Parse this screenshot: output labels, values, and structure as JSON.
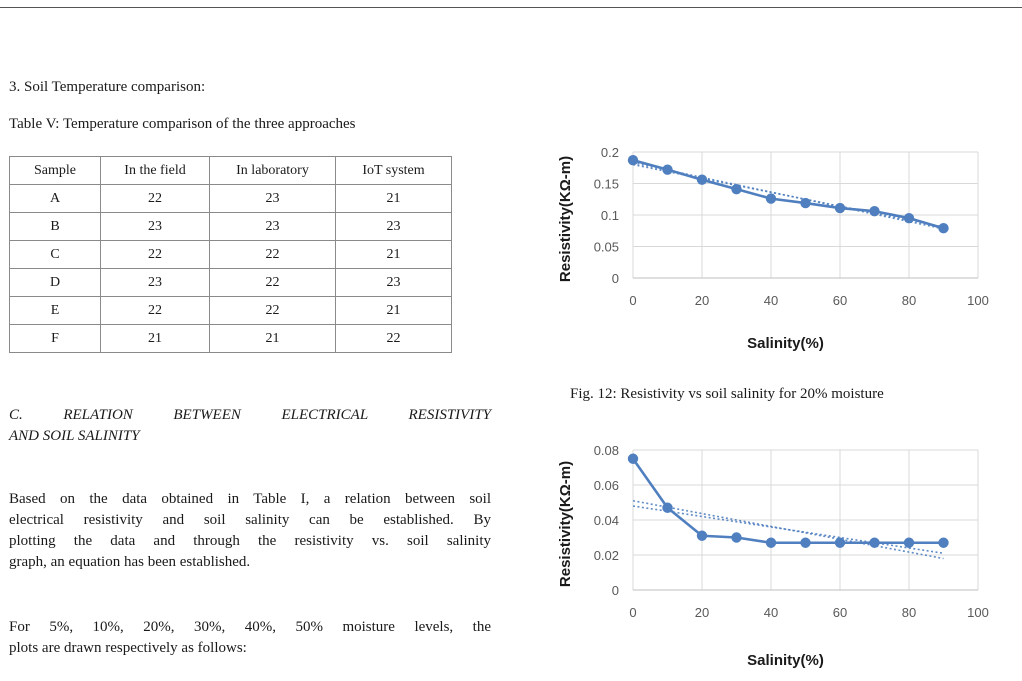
{
  "section3": {
    "heading": "3.  Soil Temperature comparison:",
    "table_caption": "Table V: Temperature comparison of the three approaches",
    "columns": [
      "Sample",
      "In the field",
      "In laboratory",
      "IoT system"
    ],
    "rows": [
      [
        "A",
        "22",
        "23",
        "21"
      ],
      [
        "B",
        "23",
        "23",
        "23"
      ],
      [
        "C",
        "22",
        "22",
        "21"
      ],
      [
        "D",
        "23",
        "22",
        "23"
      ],
      [
        "E",
        "22",
        "22",
        "21"
      ],
      [
        "F",
        "21",
        "21",
        "22"
      ]
    ]
  },
  "sectionC": {
    "title_line1": "C.   RELATION BETWEEN ELECTRICAL RESISTIVITY",
    "title_line2": "AND SOIL SALINITY",
    "para1_lines": [
      "Based on the data obtained in Table I, a relation between soil",
      "electrical resistivity and soil salinity can be established. By",
      "plotting the data and through the resistivity vs. soil salinity",
      "graph, an equation has been established."
    ],
    "para2_lines": [
      "For 5%, 10%, 20%, 30%, 40%, 50% moisture levels, the",
      "plots are drawn respectively as follows:"
    ]
  },
  "figure12": {
    "caption": "Fig.  12: Resistivity vs soil salinity for 20% moisture"
  },
  "chart_data": [
    {
      "type": "line",
      "x": [
        0,
        10,
        20,
        30,
        40,
        50,
        60,
        70,
        80,
        90
      ],
      "series": [
        {
          "values": [
            0.187,
            0.172,
            0.156,
            0.141,
            0.126,
            0.119,
            0.111,
            0.106,
            0.095,
            0.079
          ]
        }
      ],
      "trendlines": [
        {
          "x": [
            0,
            90
          ],
          "y": [
            0.183,
            0.078
          ]
        },
        {
          "x": [
            0,
            90
          ],
          "y": [
            0.18,
            0.081
          ]
        }
      ],
      "xlabel": "Salinity(%)",
      "ylabel": "Resistivity(KΩ-m)",
      "xlim": [
        0,
        100
      ],
      "ylim": [
        0,
        0.2
      ],
      "xticks": [
        "0",
        "20",
        "40",
        "60",
        "80",
        "100"
      ],
      "yticks": [
        "0",
        "0.05",
        "0.1",
        "0.15",
        "0.2"
      ],
      "grid": true,
      "color": "#4f7fbf"
    },
    {
      "type": "line",
      "x": [
        0,
        10,
        20,
        30,
        40,
        50,
        60,
        70,
        80,
        90
      ],
      "series": [
        {
          "values": [
            0.075,
            0.047,
            0.031,
            0.03,
            0.027,
            0.027,
            0.027,
            0.027,
            0.027,
            0.027
          ]
        }
      ],
      "trendlines": [
        {
          "x": [
            0,
            90
          ],
          "y": [
            0.051,
            0.018
          ]
        },
        {
          "x": [
            0,
            90
          ],
          "y": [
            0.048,
            0.021
          ]
        }
      ],
      "xlabel": "Salinity(%)",
      "ylabel": "Resistivity(KΩ-m)",
      "xlim": [
        0,
        100
      ],
      "ylim": [
        0,
        0.08
      ],
      "xticks": [
        "0",
        "20",
        "40",
        "60",
        "80",
        "100"
      ],
      "yticks": [
        "0",
        "0.02",
        "0.04",
        "0.06",
        "0.08"
      ],
      "grid": true,
      "color": "#4f7fbf"
    }
  ]
}
